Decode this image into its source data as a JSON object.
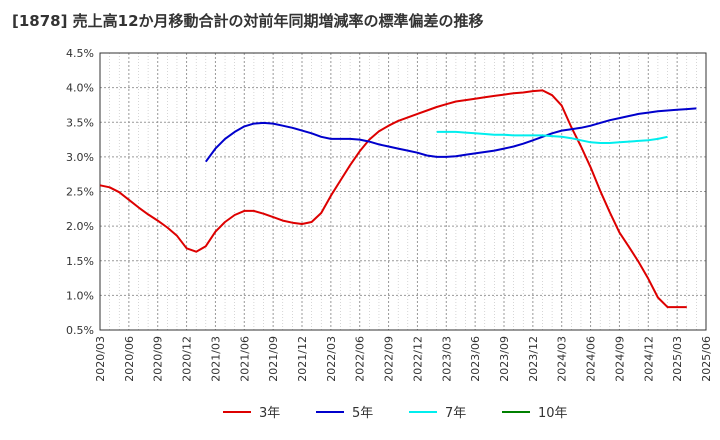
{
  "chart_data": {
    "type": "line",
    "title": "[1878]  売上高12か月移動合計の対前年同期増減率の標準偏差の推移",
    "xlabel": "",
    "ylabel": "",
    "ylim": [
      0.5,
      4.5
    ],
    "yticks": [
      "0.5%",
      "1.0%",
      "1.5%",
      "2.0%",
      "2.5%",
      "3.0%",
      "3.5%",
      "4.0%",
      "4.5%"
    ],
    "xticks": [
      "2020/03",
      "2020/06",
      "2020/09",
      "2020/12",
      "2021/03",
      "2021/06",
      "2021/09",
      "2021/12",
      "2022/03",
      "2022/06",
      "2022/09",
      "2022/12",
      "2023/03",
      "2023/06",
      "2023/09",
      "2023/12",
      "2024/03",
      "2024/06",
      "2024/09",
      "2024/12",
      "2025/03",
      "2025/06"
    ],
    "grid": true,
    "legend_position": "bottom",
    "series": [
      {
        "name": "3年",
        "color": "#dd0000",
        "start": "2020/03",
        "values": [
          2.59,
          2.56,
          2.49,
          2.38,
          2.27,
          2.17,
          2.08,
          1.98,
          1.86,
          1.68,
          1.63,
          1.71,
          1.92,
          2.06,
          2.16,
          2.22,
          2.22,
          2.18,
          2.13,
          2.08,
          2.05,
          2.03,
          2.06,
          2.19,
          2.44,
          2.66,
          2.88,
          3.08,
          3.25,
          3.37,
          3.45,
          3.52,
          3.57,
          3.62,
          3.67,
          3.72,
          3.76,
          3.8,
          3.82,
          3.84,
          3.86,
          3.88,
          3.9,
          3.92,
          3.93,
          3.95,
          3.96,
          3.89,
          3.74,
          3.43,
          3.15,
          2.85,
          2.51,
          2.2,
          1.91,
          1.7,
          1.48,
          1.24,
          0.97,
          0.83,
          0.83,
          0.83
        ]
      },
      {
        "name": "5年",
        "color": "#0000cc",
        "start": "2021/02",
        "values": [
          2.93,
          3.12,
          3.26,
          3.36,
          3.44,
          3.48,
          3.49,
          3.48,
          3.45,
          3.42,
          3.38,
          3.34,
          3.29,
          3.26,
          3.26,
          3.26,
          3.25,
          3.22,
          3.18,
          3.15,
          3.12,
          3.09,
          3.06,
          3.02,
          3.0,
          3.0,
          3.01,
          3.03,
          3.05,
          3.07,
          3.09,
          3.12,
          3.15,
          3.19,
          3.24,
          3.29,
          3.34,
          3.38,
          3.4,
          3.42,
          3.45,
          3.49,
          3.53,
          3.56,
          3.59,
          3.62,
          3.64,
          3.66,
          3.67,
          3.68,
          3.69,
          3.7
        ]
      },
      {
        "name": "7年",
        "color": "#00eeee",
        "start": "2023/02",
        "values": [
          3.36,
          3.36,
          3.36,
          3.35,
          3.34,
          3.33,
          3.32,
          3.32,
          3.31,
          3.31,
          3.31,
          3.31,
          3.3,
          3.29,
          3.27,
          3.24,
          3.21,
          3.2,
          3.2,
          3.21,
          3.22,
          3.23,
          3.24,
          3.26,
          3.29
        ]
      },
      {
        "name": "10年",
        "color": "#008000",
        "start": "2025/03",
        "values": []
      }
    ]
  }
}
